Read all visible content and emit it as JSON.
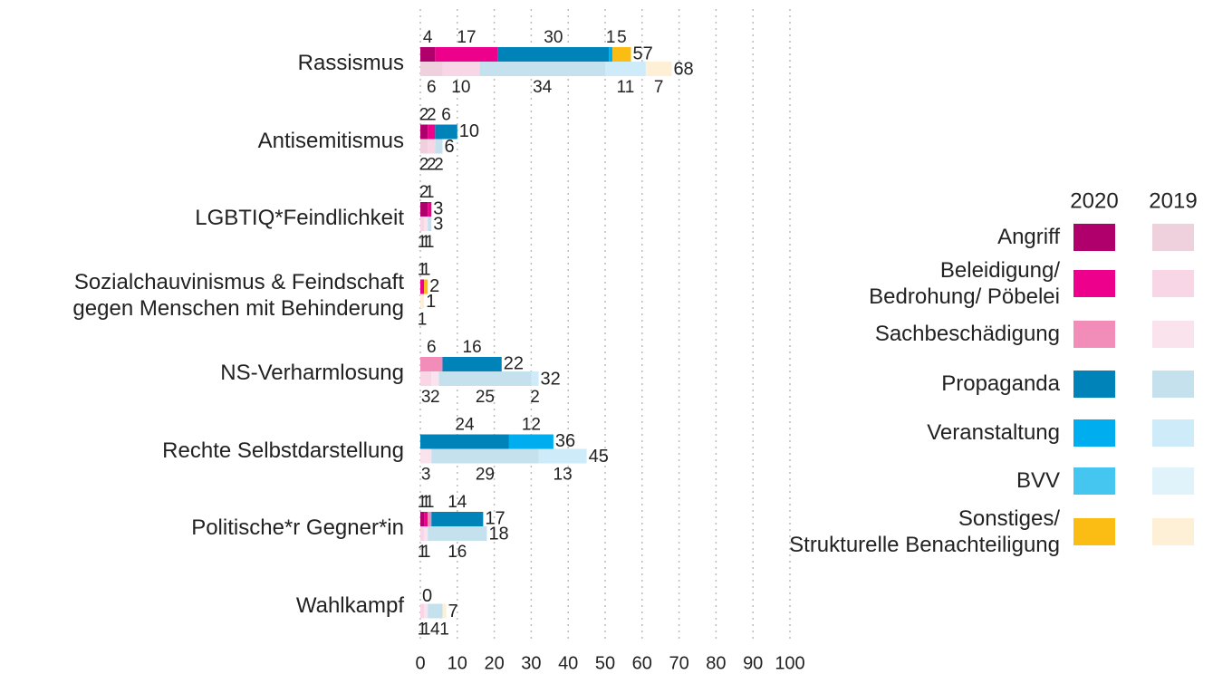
{
  "chart_data": {
    "type": "bar",
    "orientation": "horizontal",
    "stacked": true,
    "categories": [
      "Rassismus",
      "Antisemitismus",
      "LGBTIQ*Feindlichkeit",
      "Sozialchauvinismus & Feindschaft\ngegen Menschen mit Behinderung",
      "NS-Verharmlosung",
      "Rechte Selbstdarstellung",
      "Politische*r Gegner*in",
      "Wahlkampf"
    ],
    "years": [
      "2020",
      "2019"
    ],
    "series": [
      {
        "name": "Angriff",
        "colors": [
          "#b0006c",
          "#efd0dd"
        ],
        "values": [
          [
            4,
            2,
            2,
            0,
            0,
            0,
            1,
            0
          ],
          [
            6,
            2,
            0,
            0,
            0,
            0,
            0,
            0
          ]
        ]
      },
      {
        "name": "Beleidigung/\nBedrohung/ Pöbelei",
        "colors": [
          "#ec008c",
          "#f9d6e6"
        ],
        "values": [
          [
            17,
            2,
            1,
            1,
            0,
            0,
            1,
            0
          ],
          [
            10,
            2,
            1,
            0,
            3,
            0,
            1,
            1
          ]
        ]
      },
      {
        "name": "Sachbeschädigung",
        "colors": [
          "#f28cb9",
          "#fbe3ee"
        ],
        "values": [
          [
            0,
            0,
            0,
            0,
            6,
            0,
            1,
            0
          ],
          [
            0,
            0,
            1,
            0,
            2,
            3,
            1,
            1
          ]
        ]
      },
      {
        "name": "Propaganda",
        "colors": [
          "#0083b9",
          "#c5e1ee"
        ],
        "values": [
          [
            30,
            6,
            0,
            0,
            16,
            24,
            14,
            0
          ],
          [
            34,
            2,
            1,
            0,
            25,
            29,
            16,
            4
          ]
        ]
      },
      {
        "name": "Veranstaltung",
        "colors": [
          "#00aeef",
          "#cdebf8"
        ],
        "values": [
          [
            1,
            0,
            0,
            0,
            0,
            12,
            0,
            0
          ],
          [
            11,
            0,
            0,
            0,
            2,
            13,
            0,
            0
          ]
        ]
      },
      {
        "name": "BVV",
        "colors": [
          "#45c6f0",
          "#e0f3fb"
        ],
        "values": [
          [
            0,
            0,
            0,
            0,
            0,
            0,
            0,
            0
          ],
          [
            0,
            0,
            0,
            0,
            0,
            0,
            0,
            0
          ]
        ]
      },
      {
        "name": "Sonstiges/\nStrukturelle Benachteiligung",
        "colors": [
          "#fbbc14",
          "#fdf0d6"
        ],
        "values": [
          [
            5,
            0,
            0,
            1,
            0,
            0,
            0,
            0
          ],
          [
            7,
            0,
            0,
            1,
            0,
            0,
            0,
            1
          ]
        ]
      }
    ],
    "totals": [
      [
        57,
        10,
        3,
        2,
        22,
        36,
        17,
        0
      ],
      [
        68,
        6,
        3,
        1,
        32,
        45,
        18,
        7
      ]
    ],
    "xlim": [
      0,
      100
    ],
    "xticks": [
      0,
      10,
      20,
      30,
      40,
      50,
      60,
      70,
      80,
      90,
      100
    ],
    "grid": true
  }
}
